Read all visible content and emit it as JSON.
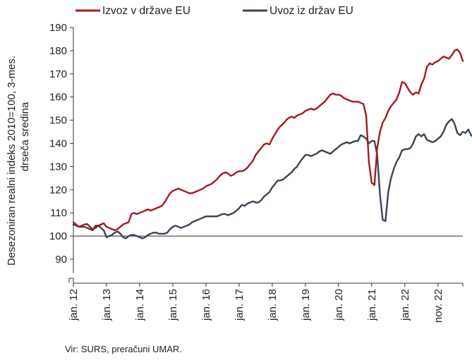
{
  "chart_data": {
    "type": "line",
    "title": "",
    "ylabel": "Desezoniran realni indeks 2010=100, 3-mes. drseča sredina",
    "ylim": [
      85,
      190
    ],
    "yticks": [
      90,
      100,
      110,
      120,
      130,
      140,
      150,
      160,
      170,
      180,
      190
    ],
    "ytick_labels": [
      "90",
      "100",
      "110",
      "120",
      "130",
      "140",
      "150",
      "160",
      "170",
      "180",
      "190"
    ],
    "axis_break": true,
    "reference_line": 100,
    "grid": false,
    "legend_position": "top",
    "xtick_labels": [
      "jan. 12",
      "jan. 13",
      "jan. 14",
      "jan. 15",
      "jan. 16",
      "jan. 17",
      "jan. 18",
      "jan. 19",
      "jan. 20",
      "jan. 21",
      "jan. 22",
      "nov. 22"
    ],
    "x_start": "2012-01",
    "x_end": "2022-11",
    "series": [
      {
        "name": "Izvoz v države EU",
        "color": "#a31a20",
        "values": [
          106,
          105,
          104,
          104.5,
          105,
          105.2,
          104,
          103,
          103.5,
          104.5,
          105,
          105.5,
          104,
          103.5,
          103,
          102.5,
          103,
          104,
          105,
          105.5,
          106,
          109.5,
          110,
          109.5,
          110,
          110.5,
          111,
          111.5,
          111,
          111.5,
          112,
          112.5,
          113,
          114.5,
          116.5,
          118.5,
          119.5,
          120,
          120.5,
          120,
          119.5,
          119,
          118.5,
          118.5,
          119,
          119.5,
          120,
          120.5,
          121.5,
          122,
          122.5,
          123.5,
          124.5,
          126,
          127,
          127.5,
          127,
          126,
          126.5,
          127.5,
          128,
          128,
          128.5,
          129.5,
          131,
          132.5,
          135,
          136.5,
          138,
          139.5,
          140,
          139.5,
          142,
          144,
          146,
          147.5,
          148.5,
          150,
          151,
          151.5,
          151,
          152,
          152.5,
          153,
          154,
          154.5,
          155,
          154.5,
          155,
          156,
          157,
          158,
          159.5,
          161,
          161.5,
          161,
          161,
          160.5,
          159.5,
          159,
          158.5,
          158,
          158,
          158,
          157.5,
          157,
          152,
          132,
          123,
          122,
          138,
          145,
          149,
          151,
          154,
          156,
          157.5,
          159,
          162,
          166.5,
          166,
          164,
          162,
          161,
          162,
          161.5,
          165.5,
          168,
          173,
          174.5,
          174,
          175,
          175.5,
          176.5,
          177.5,
          177,
          176.5,
          178,
          180,
          180.5,
          179,
          175.5
        ]
      },
      {
        "name": "Uvoz iz držav EU",
        "color": "#3a4456",
        "values": [
          105,
          104.5,
          104,
          104,
          104,
          103.5,
          103,
          102.5,
          104.5,
          104.5,
          103.5,
          102.5,
          99.5,
          100,
          100.5,
          101.5,
          102,
          101,
          99.5,
          99,
          100,
          100.5,
          100.5,
          100,
          99.5,
          99,
          99.5,
          100.5,
          101,
          101.5,
          101.5,
          101,
          101,
          101,
          101.5,
          103,
          104,
          104.5,
          104,
          103.5,
          104,
          104.5,
          105,
          106,
          106.5,
          107,
          107.5,
          108,
          108.5,
          108.5,
          108.5,
          108.5,
          108.5,
          109,
          109.5,
          109.5,
          109,
          109.5,
          110,
          111,
          112,
          113.5,
          113,
          114,
          114.5,
          115,
          114.5,
          114.5,
          115.5,
          117,
          118,
          119,
          121,
          122.5,
          124,
          124,
          124.5,
          125.5,
          126.5,
          127.5,
          129,
          130,
          132,
          133.5,
          135,
          135,
          134.5,
          135,
          135.5,
          136.5,
          137,
          136.5,
          136,
          135.5,
          136.5,
          137.5,
          138.5,
          139.5,
          140,
          140.5,
          140,
          140.5,
          141,
          141,
          143.5,
          143,
          142,
          140,
          141,
          141,
          135,
          118,
          107,
          106.5,
          119,
          125,
          129,
          132,
          134,
          137,
          137.5,
          137.5,
          138,
          140,
          143,
          144,
          143,
          144,
          141.5,
          141,
          140.5,
          141,
          142,
          143,
          145,
          148,
          149.5,
          150.5,
          148.5,
          144.5,
          143.5,
          145,
          144.5,
          146,
          143.5,
          142.5
        ]
      }
    ]
  },
  "source_text": "Vir: SURS, preračuni UMAR."
}
